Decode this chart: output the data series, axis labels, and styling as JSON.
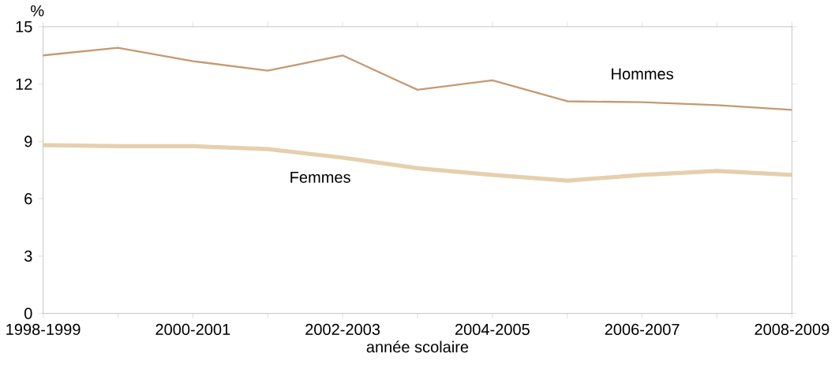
{
  "chart_data": {
    "type": "line",
    "ylabel": "%",
    "xlabel": "année scolaire",
    "categories": [
      "1998-1999",
      null,
      "2000-2001",
      null,
      "2002-2003",
      null,
      "2004-2005",
      null,
      "2006-2007",
      null,
      "2008-2009"
    ],
    "series": [
      {
        "name": "Hommes",
        "color": "#c49a72",
        "values": [
          13.5,
          13.9,
          13.2,
          12.7,
          13.5,
          11.7,
          12.2,
          11.1,
          11.05,
          10.9,
          10.65
        ]
      },
      {
        "name": "Femmes",
        "color": "#e6cfae",
        "values": [
          8.8,
          8.75,
          8.75,
          8.6,
          8.15,
          7.6,
          7.25,
          6.95,
          7.25,
          7.45,
          7.25
        ]
      }
    ],
    "ylim": [
      0,
      15
    ],
    "yticks": [
      0,
      3,
      6,
      9,
      12,
      15
    ],
    "grid": false,
    "legend": false,
    "marker": "none",
    "line_style": "solid"
  }
}
